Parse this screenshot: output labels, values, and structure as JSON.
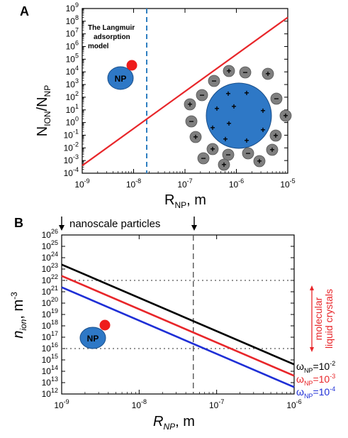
{
  "chart_data": [
    {
      "panel": "A",
      "type": "line",
      "xlabel": "R",
      "xlabel_sub": "NP",
      "xlabel_unit": ", m",
      "ylabel": "N",
      "ylabel_sub1": "ION",
      "ylabel_mid": "/N",
      "ylabel_sub2": "NP",
      "x_scale": "log",
      "y_scale": "log",
      "xlim": [
        1e-09,
        1e-05
      ],
      "ylim": [
        0.0001,
        1000000000.0
      ],
      "x_tick_exponents": [
        "-9",
        "-8",
        "-7",
        "-6",
        "-5"
      ],
      "y_tick_exponents": [
        "-4",
        "-3",
        "-2",
        "-1",
        "0",
        "1",
        "2",
        "3",
        "4",
        "5",
        "6",
        "7",
        "8",
        "9"
      ],
      "tick_base": "10",
      "series": [
        {
          "color": "#e8262a",
          "x": [
            1e-09,
            1e-05
          ],
          "y": [
            0.0004,
            200000000.0
          ]
        }
      ],
      "vline": {
        "x": 1.8e-08,
        "color": "#2f7fc1",
        "style": "dashed"
      },
      "annotation": [
        "The Langmuir",
        "adsorption",
        "model"
      ],
      "np_label": "NP",
      "ion_labels": [
        "+",
        "−"
      ]
    },
    {
      "panel": "B",
      "type": "line",
      "title": "nanoscale particles",
      "xlabel": "R",
      "xlabel_sub": "NP",
      "xlabel_unit": ", m",
      "ylabel": "n",
      "ylabel_sub": "ion",
      "ylabel_unit": ", m",
      "ylabel_sup": "-3",
      "x_scale": "log",
      "y_scale": "log",
      "xlim": [
        1e-09,
        1e-06
      ],
      "ylim": [
        1000000000000.0,
        1e+26
      ],
      "x_tick_exponents": [
        "-9",
        "-8",
        "-7",
        "-6"
      ],
      "y_tick_exponents": [
        "12",
        "13",
        "14",
        "15",
        "16",
        "17",
        "18",
        "19",
        "20",
        "21",
        "22",
        "23",
        "24",
        "25",
        "26"
      ],
      "tick_base": "10",
      "series": [
        {
          "label_prefix": "ω",
          "label_sub": "NP",
          "label_value": "=10",
          "label_exp": "-2",
          "color": "#000000",
          "x": [
            1e-09,
            1e-06
          ],
          "y": [
            2.5e+23,
            400000000000000.0
          ]
        },
        {
          "label_prefix": "ω",
          "label_sub": "NP",
          "label_value": "=10",
          "label_exp": "-3",
          "color": "#e8262a",
          "x": [
            1e-09,
            1e-06
          ],
          "y": [
            2.5e+22,
            40000000000000.0
          ]
        },
        {
          "label_prefix": "ω",
          "label_sub": "NP",
          "label_value": "=10",
          "label_exp": "-4",
          "color": "#1f2fd6",
          "x": [
            1e-09,
            1e-06
          ],
          "y": [
            2.5e+21,
            4000000000000.0
          ]
        }
      ],
      "hlines": [
        1e+22,
        1e+16
      ],
      "vline": {
        "x": 5e-08
      },
      "bracket_label": [
        "molecular",
        "liquid crystals"
      ],
      "bracket_color": "#e8262a",
      "np_label": "NP"
    }
  ],
  "panel_labels": [
    "A",
    "B"
  ]
}
